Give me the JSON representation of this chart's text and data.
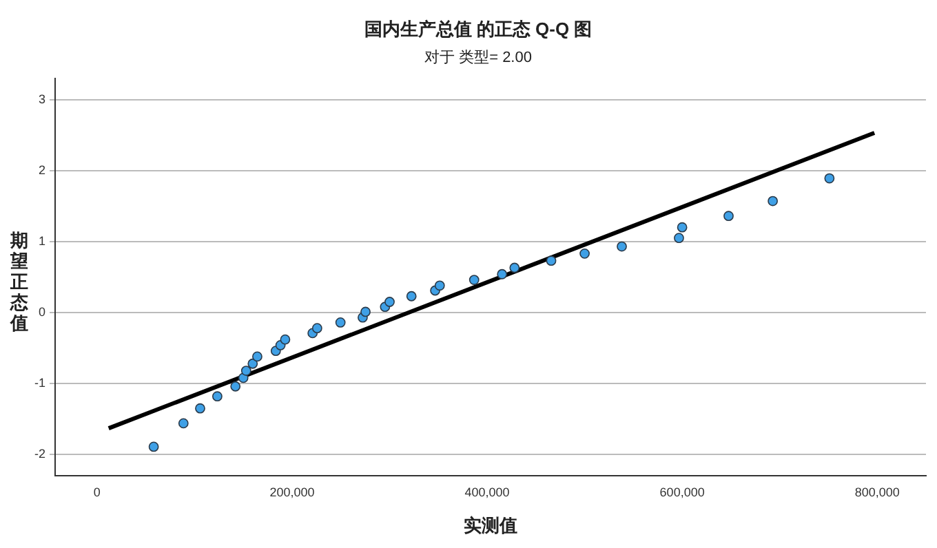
{
  "chart_data": {
    "type": "scatter",
    "title": "国内生产总值 的正态 Q-Q 图",
    "subtitle": "对于 类型= 2.00",
    "xlabel": "实测值",
    "ylabel": "期望正态值",
    "xlim": [
      -43000,
      850000
    ],
    "ylim": [
      -2.3,
      3.3
    ],
    "xticks": [
      {
        "value": 0,
        "label": "0"
      },
      {
        "value": 200000,
        "label": "200,000"
      },
      {
        "value": 400000,
        "label": "400,000"
      },
      {
        "value": 600000,
        "label": "600,000"
      },
      {
        "value": 800000,
        "label": "800,000"
      }
    ],
    "yticks": [
      -2,
      -1,
      0,
      1,
      2,
      3
    ],
    "grid": "y",
    "legend": false,
    "marker": "circle",
    "series": [
      {
        "type": "scatter",
        "color": "#3fa0e6",
        "x": [
          58100,
          88600,
          105700,
          123300,
          141900,
          150000,
          152900,
          159600,
          164300,
          183300,
          188100,
          192900,
          221000,
          225700,
          249600,
          272400,
          275300,
          295300,
          300000,
          322400,
          346700,
          351400,
          386700,
          415300,
          428100,
          465700,
          500000,
          538100,
          596700,
          600000,
          647600,
          692900,
          751000
        ],
        "values": [
          -1.89,
          -1.56,
          -1.35,
          -1.18,
          -1.04,
          -0.92,
          -0.82,
          -0.72,
          -0.62,
          -0.54,
          -0.46,
          -0.38,
          -0.29,
          -0.22,
          -0.14,
          -0.07,
          0.01,
          0.08,
          0.15,
          0.23,
          0.31,
          0.38,
          0.46,
          0.54,
          0.63,
          0.73,
          0.83,
          0.93,
          1.05,
          1.2,
          1.36,
          1.57,
          1.89
        ]
      },
      {
        "type": "line",
        "color": "#000000",
        "marker": "none",
        "line_style": "solid",
        "x": [
          11900,
          797100
        ],
        "values": [
          -1.63,
          2.53
        ]
      }
    ]
  }
}
